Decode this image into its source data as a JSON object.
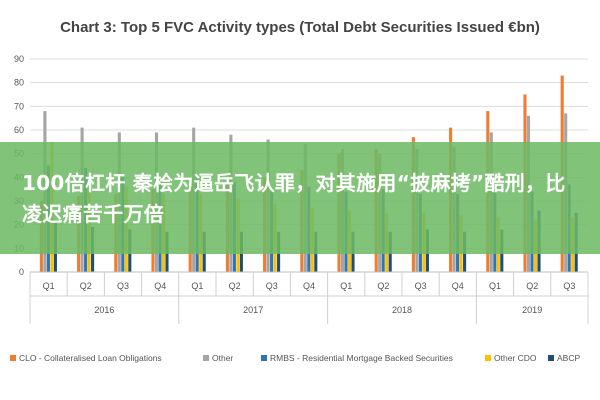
{
  "chart_data": {
    "type": "bar",
    "title": "Chart 3: Top 5 FVC Activity types (Total Debt Securities Issued €bn)",
    "ylim": [
      0,
      90
    ],
    "yticks": [
      "0",
      "10",
      "20",
      "30",
      "40",
      "50",
      "60",
      "70",
      "80",
      "90"
    ],
    "grid": true,
    "legend_position": "bottom",
    "categories": [
      "Q1",
      "Q2",
      "Q3",
      "Q4",
      "Q1",
      "Q2",
      "Q3",
      "Q4",
      "Q1",
      "Q2",
      "Q3",
      "Q4",
      "Q1",
      "Q2",
      "Q3"
    ],
    "year_groups": [
      {
        "label": "2016",
        "count": 4
      },
      {
        "label": "2017",
        "count": 4
      },
      {
        "label": "2018",
        "count": 4
      },
      {
        "label": "2019",
        "count": 3
      }
    ],
    "series": [
      {
        "name": "CLO - Collateralised Loan Obligations",
        "color": "#ed7d31",
        "values": [
          30,
          32,
          33,
          35,
          36,
          38,
          40,
          43,
          50,
          52,
          57,
          61,
          68,
          75,
          83
        ]
      },
      {
        "name": "Other",
        "color": "#a5a5a5",
        "values": [
          68,
          61,
          59,
          59,
          61,
          58,
          56,
          54,
          52,
          50,
          52,
          53,
          59,
          66,
          67
        ]
      },
      {
        "name": "RMBS - Residential Mortgage Backed Securities",
        "color": "#2e75b6",
        "values": [
          45,
          44,
          40,
          39,
          40,
          38,
          35,
          36,
          34,
          35,
          33,
          33,
          35,
          34,
          37
        ]
      },
      {
        "name": "Other CDO",
        "color": "#ffc000",
        "values": [
          55,
          37,
          36,
          33,
          33,
          31,
          29,
          27,
          26,
          25,
          25,
          24,
          23,
          22,
          23
        ]
      },
      {
        "name": "ABCP",
        "color": "#1f4e79",
        "values": [
          21,
          19,
          18,
          17,
          17,
          17,
          17,
          17,
          17,
          17,
          18,
          17,
          18,
          26,
          25
        ]
      }
    ]
  },
  "overlay": {
    "text": "100倍杠杆 秦桧为逼岳飞认罪，对其施用“披麻拷”酷刑，比凌迟痛苦千万倍"
  }
}
